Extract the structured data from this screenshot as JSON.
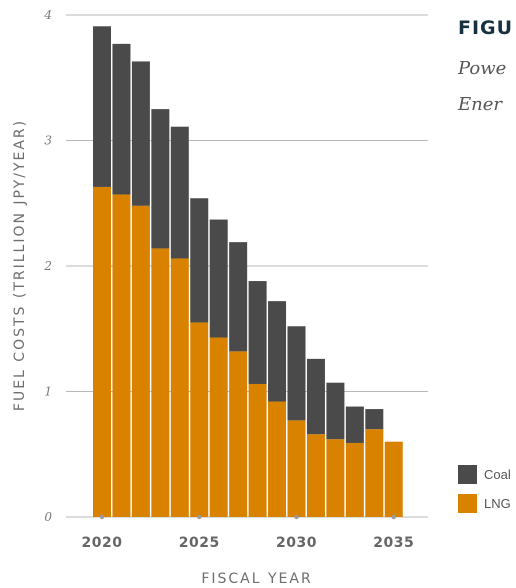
{
  "figure": {
    "title": "FIGU",
    "subtitle_lines": [
      "Powe",
      "Ener"
    ]
  },
  "colors": {
    "coal": "#4a4a4a",
    "lng": "#d98200",
    "grid": "#b8b8b8",
    "title": "#16323f"
  },
  "legend": {
    "position": "bottom-right",
    "items": [
      {
        "label": "Coal",
        "color": "#4a4a4a"
      },
      {
        "label": "LNG",
        "color": "#d98200"
      }
    ]
  },
  "chart_data": {
    "type": "bar",
    "stacked": true,
    "xlabel": "FISCAL YEAR",
    "ylabel": "FUEL COSTS (TRILLION JPY/YEAR)",
    "ylim": [
      0,
      4
    ],
    "yticks": [
      0,
      1,
      2,
      3,
      4
    ],
    "ytick_labels": [
      "0",
      "1",
      "2",
      "3",
      "4"
    ],
    "xticks": [
      2020,
      2025,
      2030,
      2035
    ],
    "xtick_labels": [
      "2020",
      "2025",
      "2030",
      "2035"
    ],
    "grid": true,
    "categories": [
      2020,
      2021,
      2022,
      2023,
      2024,
      2025,
      2026,
      2027,
      2028,
      2029,
      2030,
      2031,
      2032,
      2033,
      2034,
      2035
    ],
    "series": [
      {
        "name": "LNG",
        "color": "#d98200",
        "values": [
          2.63,
          2.57,
          2.48,
          2.14,
          2.06,
          1.55,
          1.43,
          1.32,
          1.06,
          0.92,
          0.77,
          0.66,
          0.62,
          0.59,
          0.7,
          0.6
        ]
      },
      {
        "name": "Coal",
        "color": "#4a4a4a",
        "values": [
          1.28,
          1.2,
          1.15,
          1.11,
          1.05,
          0.99,
          0.94,
          0.87,
          0.82,
          0.8,
          0.75,
          0.6,
          0.45,
          0.29,
          0.16,
          0.0
        ]
      }
    ]
  }
}
